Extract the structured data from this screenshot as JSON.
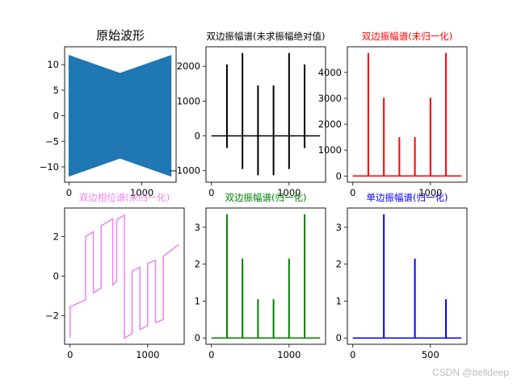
{
  "watermark": "CSDN @belldeep",
  "chart_data": [
    {
      "type": "line",
      "title": "原始波形",
      "title_color": "#000000",
      "color": "#1f77b4",
      "style": "filled-band",
      "x": [
        0,
        1400
      ],
      "envelope_upper": {
        "x": [
          0,
          700,
          1400
        ],
        "y": [
          11.8,
          8.3,
          11.8
        ]
      },
      "envelope_lower": {
        "x": [
          0,
          700,
          1400
        ],
        "y": [
          -11.8,
          -8.3,
          -11.8
        ]
      },
      "xlim": [
        -60,
        1470
      ],
      "ylim": [
        -13,
        13.5
      ],
      "xticks": [
        0,
        1000
      ],
      "yticks": [
        -10,
        -5,
        0,
        5,
        10
      ],
      "xticklabels": [
        "0",
        "1000"
      ],
      "yticklabels": [
        "−10",
        "−5",
        "0",
        "5",
        "10"
      ]
    },
    {
      "type": "line",
      "title": "双边振幅谱(未求振幅绝对值)",
      "title_color": "#000000",
      "color": "#000000",
      "style": "spikes",
      "baseline": 0,
      "x_end": 1400,
      "spikes": [
        {
          "x": 200,
          "top": 2050,
          "bottom": -350
        },
        {
          "x": 400,
          "top": 2380,
          "bottom": -950
        },
        {
          "x": 600,
          "top": 1450,
          "bottom": -1130
        },
        {
          "x": 800,
          "top": 1450,
          "bottom": -1130
        },
        {
          "x": 1000,
          "top": 2380,
          "bottom": -950
        },
        {
          "x": 1200,
          "top": 2050,
          "bottom": -350
        }
      ],
      "xlim": [
        -70,
        1470
      ],
      "ylim": [
        -1330,
        2560
      ],
      "xticks": [
        0,
        1000
      ],
      "yticks": [
        -1000,
        0,
        1000,
        2000
      ],
      "xticklabels": [
        "0",
        "1000"
      ],
      "yticklabels": [
        "−1000",
        "0",
        "1000",
        "2000"
      ]
    },
    {
      "type": "line",
      "title": "双边振幅谱(未归一化)",
      "title_color": "#ff0000",
      "color": "#ff0000",
      "style": "spikes",
      "baseline": 0,
      "x_end": 1400,
      "spikes": [
        {
          "x": 200,
          "top": 4750,
          "bottom": 0
        },
        {
          "x": 400,
          "top": 3020,
          "bottom": 0
        },
        {
          "x": 600,
          "top": 1500,
          "bottom": 0
        },
        {
          "x": 800,
          "top": 1500,
          "bottom": 0
        },
        {
          "x": 1000,
          "top": 3020,
          "bottom": 0
        },
        {
          "x": 1200,
          "top": 4750,
          "bottom": 0
        }
      ],
      "xlim": [
        -70,
        1470
      ],
      "ylim": [
        -240,
        4990
      ],
      "xticks": [
        0,
        1000
      ],
      "yticks": [
        0,
        1000,
        2000,
        3000,
        4000
      ],
      "xticklabels": [
        "0",
        "1000"
      ],
      "yticklabels": [
        "0",
        "1000",
        "2000",
        "3000",
        "4000"
      ]
    },
    {
      "type": "line",
      "title": "双边相位谱(未归一化)",
      "title_color": "#ee82ee",
      "color": "#ee82ee",
      "style": "polyline",
      "points": [
        [
          0,
          -3.14
        ],
        [
          0,
          -1.55
        ],
        [
          200,
          -1.2
        ],
        [
          200,
          2.0
        ],
        [
          300,
          2.25
        ],
        [
          300,
          -0.85
        ],
        [
          400,
          -0.6
        ],
        [
          400,
          2.55
        ],
        [
          550,
          2.9
        ],
        [
          550,
          -0.45
        ],
        [
          600,
          -0.25
        ],
        [
          600,
          2.85
        ],
        [
          700,
          3.1
        ],
        [
          700,
          -3.14
        ],
        [
          800,
          -2.9
        ],
        [
          800,
          0.25
        ],
        [
          900,
          0.45
        ],
        [
          900,
          -2.7
        ],
        [
          1000,
          -2.5
        ],
        [
          1000,
          0.65
        ],
        [
          1100,
          0.8
        ],
        [
          1100,
          -2.35
        ],
        [
          1200,
          -2.2
        ],
        [
          1200,
          1.0
        ],
        [
          1400,
          1.6
        ]
      ],
      "xlim": [
        -70,
        1470
      ],
      "ylim": [
        -3.45,
        3.45
      ],
      "xticks": [
        0,
        1000
      ],
      "yticks": [
        -2,
        0,
        2
      ],
      "xticklabels": [
        "0",
        "1000"
      ],
      "yticklabels": [
        "−2",
        "0",
        "2"
      ]
    },
    {
      "type": "line",
      "title": "双边振幅谱(归一化)",
      "title_color": "#008000",
      "color": "#008000",
      "style": "spikes",
      "baseline": 0,
      "x_end": 1400,
      "spikes": [
        {
          "x": 200,
          "top": 3.35,
          "bottom": 0
        },
        {
          "x": 400,
          "top": 2.15,
          "bottom": 0
        },
        {
          "x": 600,
          "top": 1.05,
          "bottom": 0
        },
        {
          "x": 800,
          "top": 1.05,
          "bottom": 0
        },
        {
          "x": 1000,
          "top": 2.15,
          "bottom": 0
        },
        {
          "x": 1200,
          "top": 3.35,
          "bottom": 0
        }
      ],
      "xlim": [
        -70,
        1470
      ],
      "ylim": [
        -0.17,
        3.52
      ],
      "xticks": [
        0,
        1000
      ],
      "yticks": [
        0,
        1,
        2,
        3
      ],
      "xticklabels": [
        "0",
        "1000"
      ],
      "yticklabels": [
        "0",
        "1",
        "2",
        "3"
      ]
    },
    {
      "type": "line",
      "title": "单边振幅谱(归一化)",
      "title_color": "#0000ff",
      "color": "#0000ff",
      "style": "spikes",
      "baseline": 0,
      "x_end": 700,
      "spikes": [
        {
          "x": 200,
          "top": 3.35,
          "bottom": 0
        },
        {
          "x": 400,
          "top": 2.15,
          "bottom": 0
        },
        {
          "x": 600,
          "top": 1.05,
          "bottom": 0
        }
      ],
      "xlim": [
        -35,
        735
      ],
      "ylim": [
        -0.17,
        3.52
      ],
      "xticks": [
        0,
        500
      ],
      "yticks": [
        0,
        1,
        2,
        3
      ],
      "xticklabels": [
        "0",
        "500"
      ],
      "yticklabels": [
        "0",
        "1",
        "2",
        "3"
      ]
    }
  ]
}
